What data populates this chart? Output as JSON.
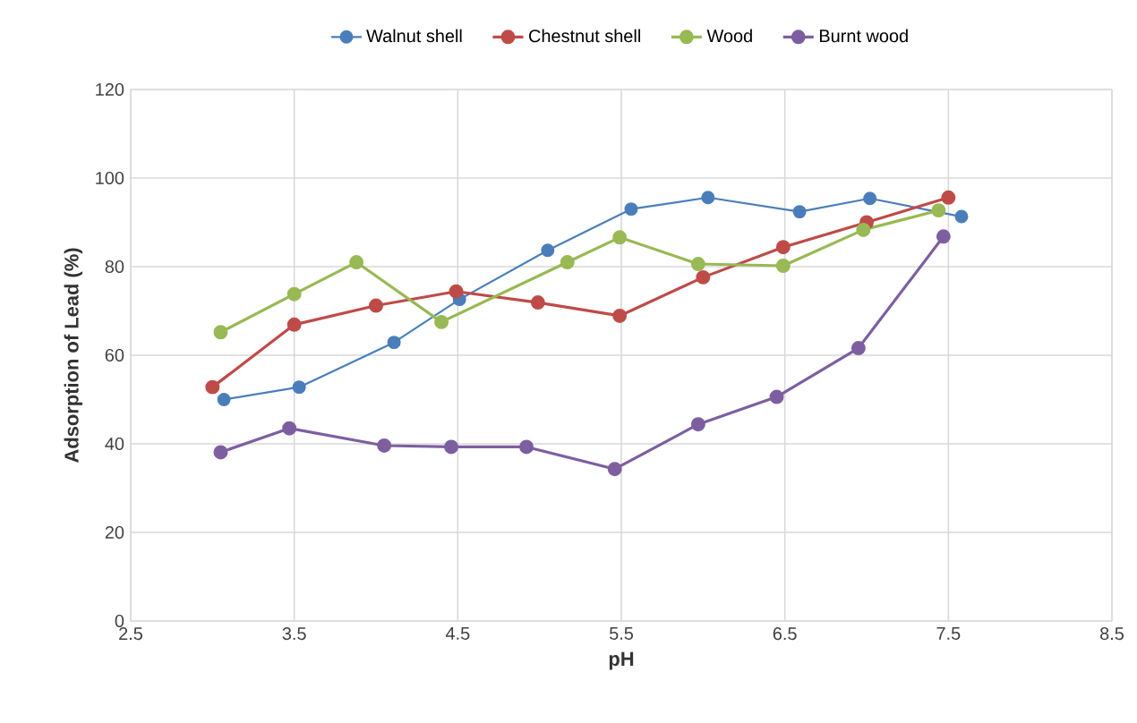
{
  "chart_data": {
    "type": "line",
    "xlabel": "pH",
    "ylabel": "Adsorption of Lead (%)",
    "xlim": [
      2.5,
      8.5
    ],
    "xticks": [
      2.5,
      3.5,
      4.5,
      5.5,
      6.5,
      7.5,
      8.5
    ],
    "ylim": [
      0,
      120
    ],
    "yticks": [
      0,
      20,
      40,
      60,
      80,
      100,
      120
    ],
    "grid": true,
    "legend": "top",
    "marker": "circle",
    "line_style": "solid",
    "series": [
      {
        "name": "Walnut shell",
        "color": "#4a7ebb",
        "x": [
          3.07,
          3.53,
          4.11,
          4.51,
          5.05,
          5.56,
          6.03,
          6.59,
          7.02,
          7.58
        ],
        "values": [
          50,
          52.8,
          62.9,
          72.6,
          83.7,
          93,
          95.6,
          92.4,
          95.4,
          91.3
        ]
      },
      {
        "name": "Chestnut shell",
        "color": "#be4b48",
        "x": [
          3.0,
          3.5,
          4.0,
          4.49,
          4.99,
          5.49,
          6.0,
          6.49,
          7.0,
          7.5
        ],
        "values": [
          52.8,
          66.9,
          71.2,
          74.4,
          71.9,
          68.9,
          77.6,
          84.4,
          90,
          95.6
        ]
      },
      {
        "name": "Wood",
        "color": "#98b954",
        "x": [
          3.05,
          3.5,
          3.88,
          4.4,
          5.17,
          5.49,
          5.97,
          6.49,
          6.98,
          7.44
        ],
        "values": [
          65.2,
          73.8,
          81,
          67.5,
          81,
          86.6,
          80.6,
          80.2,
          88.3,
          92.7
        ]
      },
      {
        "name": "Burnt wood",
        "color": "#7d5fa0",
        "x": [
          3.05,
          3.47,
          4.05,
          4.46,
          4.92,
          5.46,
          5.97,
          6.45,
          6.95,
          7.47
        ],
        "values": [
          38.1,
          43.5,
          39.6,
          39.3,
          39.3,
          34.3,
          44.4,
          50.6,
          61.6,
          86.8
        ]
      }
    ]
  }
}
